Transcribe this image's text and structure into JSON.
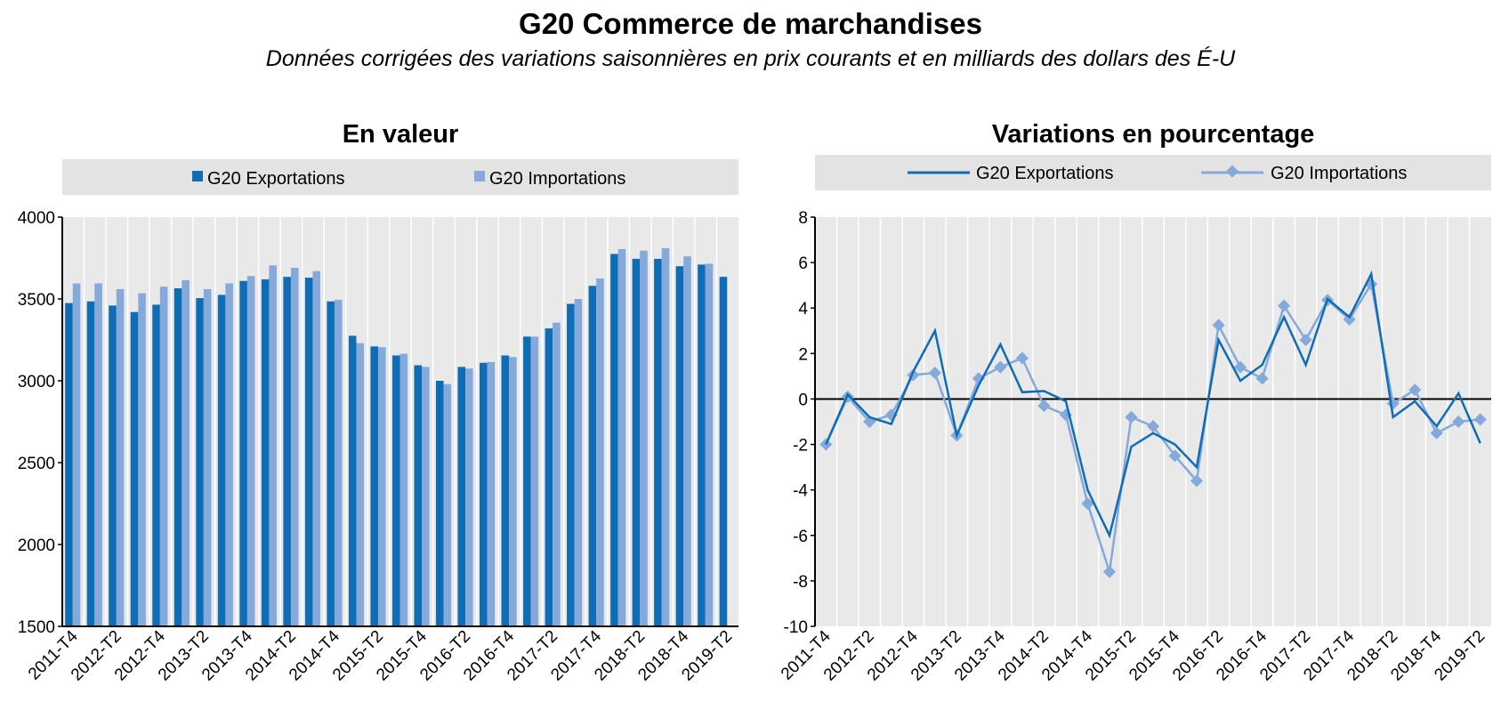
{
  "title": "G20 Commerce de marchandises",
  "subtitle": "Données corrigées des variations saisonnières en prix courants et en milliards des dollars des É-U",
  "colors": {
    "exports": "#0F6DB5",
    "imports": "#86A9DB",
    "plot_bg": "#E9E9E9",
    "grid": "#FFFFFF"
  },
  "chart_data": [
    {
      "type": "bar",
      "title": "En valeur",
      "xlabel": "",
      "ylabel": "",
      "ylim": [
        1500,
        4000
      ],
      "yticks": [
        1500,
        2000,
        2500,
        3000,
        3500,
        4000
      ],
      "legend": "top",
      "grid": true,
      "categories": [
        "2011-T4",
        "2012-T1",
        "2012-T2",
        "2012-T3",
        "2012-T4",
        "2013-T1",
        "2013-T2",
        "2013-T3",
        "2013-T4",
        "2014-T1",
        "2014-T2",
        "2014-T3",
        "2014-T4",
        "2015-T1",
        "2015-T2",
        "2015-T3",
        "2015-T4",
        "2016-T1",
        "2016-T2",
        "2016-T3",
        "2016-T4",
        "2017-T1",
        "2017-T2",
        "2017-T3",
        "2017-T4",
        "2018-T1",
        "2018-T2",
        "2018-T3",
        "2018-T4",
        "2019-T1",
        "2019-T2"
      ],
      "tick_labels": [
        "2011-T4",
        "2012-T2",
        "2012-T4",
        "2013-T2",
        "2013-T4",
        "2014-T2",
        "2014-T4",
        "2015-T2",
        "2015-T4",
        "2016-T2",
        "2016-T4",
        "2017-T2",
        "2017-T4",
        "2018-T2",
        "2018-T4",
        "2019-T2"
      ],
      "series": [
        {
          "name": "G20 Exportations",
          "values": [
            3475,
            3485,
            3460,
            3420,
            3465,
            3565,
            3505,
            3525,
            3610,
            3620,
            3635,
            3630,
            3485,
            3275,
            3210,
            3155,
            3095,
            3000,
            3085,
            3110,
            3155,
            3270,
            3320,
            3470,
            3580,
            3775,
            3745,
            3745,
            3700,
            3710,
            3635
          ]
        },
        {
          "name": "G20 Importations",
          "values": [
            3595,
            3595,
            3560,
            3535,
            3575,
            3615,
            3560,
            3595,
            3640,
            3705,
            3690,
            3670,
            3495,
            3230,
            3205,
            3165,
            3085,
            2980,
            3075,
            3115,
            3145,
            3270,
            3355,
            3500,
            3625,
            3805,
            3795,
            3810,
            3760,
            3715,
            null
          ]
        }
      ]
    },
    {
      "type": "line",
      "title": "Variations en pourcentage",
      "xlabel": "",
      "ylabel": "",
      "ylim": [
        -10,
        8
      ],
      "yticks": [
        -10,
        -8,
        -6,
        -4,
        -2,
        0,
        2,
        4,
        6,
        8
      ],
      "legend": "top",
      "grid": true,
      "categories": [
        "2011-T4",
        "2012-T1",
        "2012-T2",
        "2012-T3",
        "2012-T4",
        "2013-T1",
        "2013-T2",
        "2013-T3",
        "2013-T4",
        "2014-T1",
        "2014-T2",
        "2014-T3",
        "2014-T4",
        "2015-T1",
        "2015-T2",
        "2015-T3",
        "2015-T4",
        "2016-T1",
        "2016-T2",
        "2016-T3",
        "2016-T4",
        "2017-T1",
        "2017-T2",
        "2017-T3",
        "2017-T4",
        "2018-T1",
        "2018-T2",
        "2018-T3",
        "2018-T4",
        "2019-T1",
        "2019-T2"
      ],
      "tick_labels": [
        "2011-T4",
        "2012-T2",
        "2012-T4",
        "2013-T2",
        "2013-T4",
        "2014-T2",
        "2014-T4",
        "2015-T2",
        "2015-T4",
        "2016-T2",
        "2016-T4",
        "2017-T2",
        "2017-T4",
        "2018-T2",
        "2018-T4",
        "2019-T2"
      ],
      "series": [
        {
          "name": "G20 Exportations",
          "values": [
            -2.0,
            0.2,
            -0.8,
            -1.1,
            1.2,
            3.0,
            -1.6,
            0.6,
            2.4,
            0.3,
            0.35,
            -0.1,
            -4.0,
            -6.0,
            -2.1,
            -1.5,
            -2.0,
            -3.0,
            2.6,
            0.8,
            1.5,
            3.6,
            1.5,
            4.4,
            3.6,
            5.5,
            -0.8,
            -0.1,
            -1.2,
            0.25,
            -1.95
          ]
        },
        {
          "name": "G20 Importations",
          "values": [
            -2.0,
            0.1,
            -1.0,
            -0.7,
            1.05,
            1.15,
            -1.6,
            0.9,
            1.4,
            1.8,
            -0.3,
            -0.7,
            -4.6,
            -7.6,
            -0.8,
            -1.2,
            -2.5,
            -3.6,
            3.25,
            1.4,
            0.9,
            4.1,
            2.6,
            4.35,
            3.5,
            5.05,
            -0.2,
            0.4,
            -1.5,
            -1.0,
            -0.9
          ]
        }
      ]
    }
  ]
}
